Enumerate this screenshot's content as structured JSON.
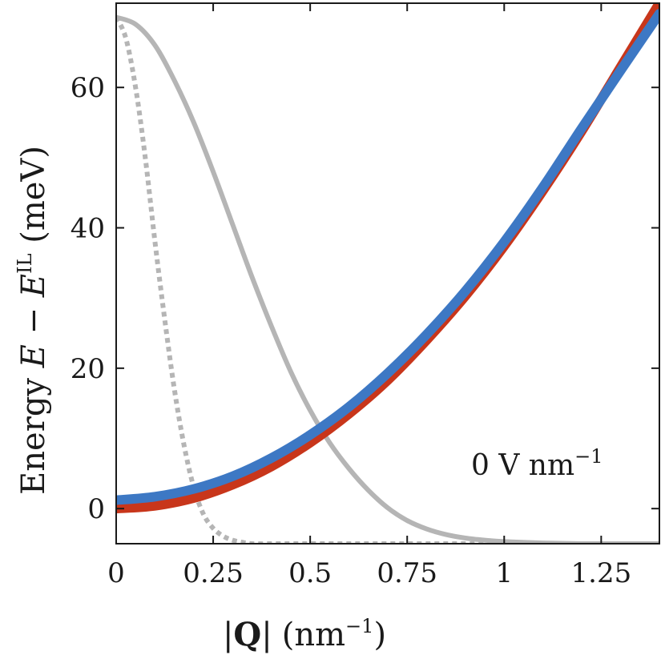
{
  "chart_data": {
    "type": "line",
    "xlabel_parts": {
      "open": "|",
      "bold": "Q",
      "close": "|",
      "unit_open": "(nm",
      "unit_sup": "−1",
      "unit_close": ")"
    },
    "ylabel_parts": {
      "text": "Energy ",
      "var1": "E",
      "minus": " − ",
      "var2": "E",
      "sup": "IL",
      "unit": " (meV)"
    },
    "annotation_parts": {
      "text": "0 V nm",
      "sup": "−1"
    },
    "xlim": [
      0,
      1.4
    ],
    "ylim": [
      -5,
      72
    ],
    "xticks": [
      0,
      0.25,
      0.5,
      0.75,
      1,
      1.25
    ],
    "xtick_labels": [
      "0",
      "0.25",
      "0.5",
      "0.75",
      "1",
      "1.25"
    ],
    "yticks": [
      0,
      20,
      40,
      60
    ],
    "ytick_labels": [
      "0",
      "20",
      "40",
      "60"
    ],
    "series": [
      {
        "name": "red-dispersion",
        "color": "#c8361b",
        "style": "solid",
        "x": [
          0,
          0.1,
          0.2,
          0.3,
          0.4,
          0.5,
          0.6,
          0.7,
          0.8,
          0.9,
          1.0,
          1.1,
          1.2,
          1.3,
          1.4
        ],
        "y": [
          0,
          0.4,
          1.5,
          3.4,
          6.0,
          9.4,
          13.5,
          18.3,
          24.0,
          30.3,
          37.4,
          45.3,
          53.8,
          62.9,
          72.0
        ]
      },
      {
        "name": "blue-dispersion",
        "color": "#3d78c4",
        "style": "solid",
        "x": [
          0,
          0.1,
          0.2,
          0.3,
          0.4,
          0.5,
          0.6,
          0.7,
          0.8,
          0.9,
          1.0,
          1.1,
          1.2,
          1.3,
          1.4
        ],
        "y": [
          1.2,
          1.7,
          2.8,
          4.6,
          7.2,
          10.5,
          14.5,
          19.3,
          24.8,
          31.0,
          38.0,
          45.8,
          54.2,
          62.4,
          70.5
        ]
      },
      {
        "name": "gray-solid-envelope",
        "color": "#b5b5b5",
        "style": "solid",
        "x": [
          0,
          0.05,
          0.1,
          0.15,
          0.2,
          0.25,
          0.3,
          0.35,
          0.4,
          0.45,
          0.5,
          0.55,
          0.6,
          0.65,
          0.7,
          0.75,
          0.8,
          0.85,
          0.9,
          0.95,
          1.0,
          1.1,
          1.2,
          1.3,
          1.4
        ],
        "y": [
          70,
          69,
          66,
          61,
          55,
          48,
          40.5,
          33,
          26,
          19.5,
          14,
          9.4,
          5.7,
          2.6,
          0.1,
          -1.7,
          -2.9,
          -3.7,
          -4.2,
          -4.5,
          -4.7,
          -4.9,
          -5,
          -5,
          -5
        ]
      },
      {
        "name": "gray-dotted-envelope",
        "color": "#b5b5b5",
        "style": "dotted",
        "x": [
          0,
          0.025,
          0.05,
          0.075,
          0.1,
          0.125,
          0.15,
          0.175,
          0.2,
          0.225,
          0.25,
          0.275,
          0.3,
          0.325,
          0.35,
          0.4,
          0.5,
          0.7,
          1.0,
          1.4
        ],
        "y": [
          70,
          67,
          60,
          50,
          38,
          27,
          17,
          9,
          3,
          -0.8,
          -2.8,
          -3.9,
          -4.5,
          -4.8,
          -5,
          -5,
          -5,
          -5,
          -5,
          -5
        ]
      }
    ]
  }
}
